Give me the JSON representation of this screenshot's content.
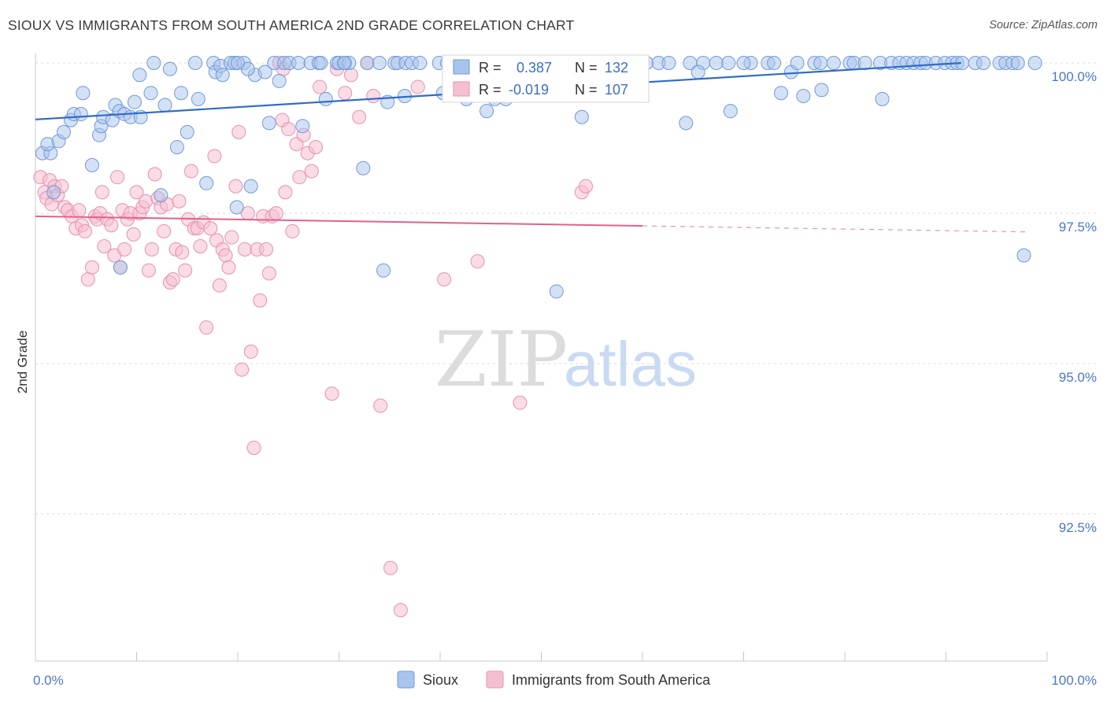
{
  "header": {
    "title": "SIOUX VS IMMIGRANTS FROM SOUTH AMERICA 2ND GRADE CORRELATION CHART",
    "source": "Source: ZipAtlas.com"
  },
  "watermark": {
    "zip": "ZIP",
    "atlas": "atlas"
  },
  "legend_box": {
    "r_label": "R =",
    "n_label": "N =",
    "sioux": {
      "r": "0.387",
      "n": "132"
    },
    "immigrants": {
      "r": "-0.019",
      "n": "107"
    }
  },
  "bottom_legend": {
    "sioux": "Sioux",
    "immigrants": "Immigrants from South America"
  },
  "colors": {
    "sioux_fill": "#a9c4ec",
    "sioux_stroke": "#6f9ad8",
    "sioux_line": "#2f6cc7",
    "imm_fill": "#f6bfd1",
    "imm_stroke": "#e890ad",
    "imm_line": "#e0618c",
    "tick_label": "#4a78c4",
    "grid": "#d9d9d9"
  },
  "chart_data": {
    "type": "scatter",
    "ylabel": "2nd Grade",
    "xlim": [
      0,
      100
    ],
    "ylim": [
      90.5,
      100.5
    ],
    "y_ticks": [
      100.0,
      97.5,
      95.0,
      92.5
    ],
    "y_tick_labels": [
      "100.0%",
      "97.5%",
      "95.0%",
      "92.5%"
    ],
    "x_tick_labels": [
      "0.0%",
      "100.0%"
    ],
    "grid": "horizontal dashed",
    "series": [
      {
        "name": "Sioux",
        "r": 0.387,
        "n": 132,
        "trend": {
          "x0": 0,
          "y0": 99.06,
          "x1": 91.5,
          "y1": 100.0
        },
        "points": [
          [
            0.7,
            98.5
          ],
          [
            1.5,
            98.5
          ],
          [
            1.2,
            98.65
          ],
          [
            2.3,
            98.7
          ],
          [
            2.8,
            98.85
          ],
          [
            3.5,
            99.05
          ],
          [
            3.8,
            99.15
          ],
          [
            4.5,
            99.15
          ],
          [
            6.3,
            98.8
          ],
          [
            6.5,
            98.95
          ],
          [
            4.7,
            99.5
          ],
          [
            5.6,
            98.3
          ],
          [
            6.7,
            99.1
          ],
          [
            7.6,
            99.05
          ],
          [
            7.9,
            99.3
          ],
          [
            8.3,
            99.2
          ],
          [
            8.8,
            99.15
          ],
          [
            9.4,
            99.1
          ],
          [
            9.8,
            99.35
          ],
          [
            10.4,
            99.1
          ],
          [
            10.3,
            99.8
          ],
          [
            11.4,
            99.5
          ],
          [
            11.7,
            100.0
          ],
          [
            12.8,
            99.3
          ],
          [
            13.3,
            99.9
          ],
          [
            14.0,
            98.6
          ],
          [
            14.4,
            99.5
          ],
          [
            15.0,
            98.85
          ],
          [
            15.8,
            100.0
          ],
          [
            16.1,
            99.4
          ],
          [
            16.9,
            98.0
          ],
          [
            17.6,
            100.0
          ],
          [
            17.8,
            99.85
          ],
          [
            18.3,
            99.95
          ],
          [
            18.5,
            99.8
          ],
          [
            19.3,
            100.0
          ],
          [
            19.7,
            100.0
          ],
          [
            19.9,
            97.6
          ],
          [
            20.6,
            100.0
          ],
          [
            21.3,
            97.95
          ],
          [
            21.7,
            99.8
          ],
          [
            21.0,
            99.9
          ],
          [
            22.7,
            99.85
          ],
          [
            23.1,
            99.0
          ],
          [
            23.6,
            100.0
          ],
          [
            24.1,
            99.7
          ],
          [
            24.6,
            100.0
          ],
          [
            25.1,
            100.0
          ],
          [
            26.0,
            100.0
          ],
          [
            26.4,
            98.95
          ],
          [
            27.2,
            100.0
          ],
          [
            28.0,
            100.0
          ],
          [
            28.2,
            100.0
          ],
          [
            28.7,
            99.4
          ],
          [
            29.8,
            100.0
          ],
          [
            30.0,
            100.0
          ],
          [
            30.6,
            100.0
          ],
          [
            31.0,
            100.0
          ],
          [
            32.4,
            98.25
          ],
          [
            32.8,
            100.0
          ],
          [
            34.4,
            96.55
          ],
          [
            34.8,
            99.35
          ],
          [
            35.5,
            100.0
          ],
          [
            35.8,
            100.0
          ],
          [
            36.6,
            100.0
          ],
          [
            37.2,
            100.0
          ],
          [
            38.0,
            100.0
          ],
          [
            39.9,
            100.0
          ],
          [
            40.7,
            100.0
          ],
          [
            41.5,
            100.0
          ],
          [
            42.1,
            100.0
          ],
          [
            42.6,
            99.4
          ],
          [
            43.9,
            100.0
          ],
          [
            44.6,
            99.2
          ],
          [
            44.9,
            100.0
          ],
          [
            45.4,
            99.4
          ],
          [
            46.5,
            99.4
          ],
          [
            47.7,
            100.0
          ],
          [
            49.1,
            100.0
          ],
          [
            50.7,
            100.0
          ],
          [
            52.3,
            100.0
          ],
          [
            54.0,
            99.1
          ],
          [
            56.5,
            100.0
          ],
          [
            59.0,
            100.0
          ],
          [
            60.4,
            100.0
          ],
          [
            61.6,
            100.0
          ],
          [
            62.6,
            100.0
          ],
          [
            64.3,
            99.0
          ],
          [
            64.7,
            100.0
          ],
          [
            66.0,
            100.0
          ],
          [
            67.3,
            100.0
          ],
          [
            68.5,
            100.0
          ],
          [
            70.7,
            100.0
          ],
          [
            72.4,
            100.0
          ],
          [
            73.0,
            100.0
          ],
          [
            74.7,
            99.85
          ],
          [
            75.3,
            100.0
          ],
          [
            77.0,
            100.0
          ],
          [
            77.6,
            100.0
          ],
          [
            78.9,
            100.0
          ],
          [
            80.5,
            100.0
          ],
          [
            80.9,
            100.0
          ],
          [
            82.0,
            100.0
          ],
          [
            83.5,
            100.0
          ],
          [
            84.6,
            100.0
          ],
          [
            85.4,
            100.0
          ],
          [
            86.1,
            100.0
          ],
          [
            86.8,
            100.0
          ],
          [
            87.5,
            100.0
          ],
          [
            88.0,
            100.0
          ],
          [
            89.0,
            100.0
          ],
          [
            89.9,
            100.0
          ],
          [
            90.6,
            100.0
          ],
          [
            91.1,
            100.0
          ],
          [
            91.6,
            100.0
          ],
          [
            92.9,
            100.0
          ],
          [
            93.7,
            100.0
          ],
          [
            95.3,
            100.0
          ],
          [
            95.9,
            100.0
          ],
          [
            96.6,
            100.0
          ],
          [
            97.1,
            100.0
          ],
          [
            98.8,
            100.0
          ],
          [
            68.7,
            99.2
          ],
          [
            73.7,
            99.5
          ],
          [
            75.9,
            99.45
          ],
          [
            77.7,
            99.55
          ],
          [
            83.7,
            99.4
          ],
          [
            65.5,
            99.85
          ],
          [
            70.0,
            100.0
          ],
          [
            36.5,
            99.45
          ],
          [
            40.3,
            99.5
          ],
          [
            34.0,
            100.0
          ],
          [
            20.0,
            100.0
          ],
          [
            30.5,
            100.0
          ],
          [
            45.5,
            100.0
          ],
          [
            12.4,
            97.8
          ],
          [
            8.4,
            96.6
          ],
          [
            1.8,
            97.85
          ],
          [
            51.5,
            96.2
          ],
          [
            97.7,
            96.8
          ],
          [
            55.0,
            100.0
          ],
          [
            57.5,
            100.0
          ],
          [
            42.9,
            99.5
          ]
        ]
      },
      {
        "name": "Immigrants from South America",
        "r": -0.019,
        "n": 107,
        "trend": {
          "x0": 0,
          "y0": 97.45,
          "x1": 60.0,
          "y1": 97.29,
          "dash_x1": 98.0,
          "dash_y1": 97.19
        },
        "points": [
          [
            0.5,
            98.1
          ],
          [
            0.9,
            97.85
          ],
          [
            1.1,
            97.75
          ],
          [
            1.4,
            98.05
          ],
          [
            1.6,
            97.65
          ],
          [
            1.9,
            97.95
          ],
          [
            2.2,
            97.8
          ],
          [
            2.6,
            97.95
          ],
          [
            2.9,
            97.6
          ],
          [
            3.2,
            97.55
          ],
          [
            3.6,
            97.45
          ],
          [
            4.0,
            97.25
          ],
          [
            4.3,
            97.55
          ],
          [
            4.6,
            97.3
          ],
          [
            4.9,
            97.2
          ],
          [
            5.2,
            96.4
          ],
          [
            5.6,
            96.6
          ],
          [
            5.9,
            97.45
          ],
          [
            6.1,
            97.4
          ],
          [
            6.4,
            97.5
          ],
          [
            6.6,
            97.85
          ],
          [
            6.8,
            96.95
          ],
          [
            7.1,
            97.4
          ],
          [
            7.5,
            97.3
          ],
          [
            7.8,
            96.8
          ],
          [
            8.1,
            98.1
          ],
          [
            8.4,
            96.6
          ],
          [
            8.6,
            97.55
          ],
          [
            8.8,
            96.9
          ],
          [
            9.1,
            97.4
          ],
          [
            9.4,
            97.5
          ],
          [
            9.7,
            97.15
          ],
          [
            10.0,
            97.85
          ],
          [
            10.3,
            97.5
          ],
          [
            10.6,
            97.6
          ],
          [
            10.9,
            97.7
          ],
          [
            11.2,
            96.55
          ],
          [
            11.5,
            96.9
          ],
          [
            11.8,
            98.15
          ],
          [
            12.1,
            97.75
          ],
          [
            12.4,
            97.6
          ],
          [
            12.7,
            97.2
          ],
          [
            13.0,
            97.65
          ],
          [
            13.3,
            96.35
          ],
          [
            13.6,
            96.4
          ],
          [
            13.9,
            96.9
          ],
          [
            14.2,
            97.7
          ],
          [
            14.5,
            96.85
          ],
          [
            14.8,
            96.55
          ],
          [
            15.1,
            97.4
          ],
          [
            15.4,
            98.2
          ],
          [
            15.7,
            97.25
          ],
          [
            16.0,
            97.25
          ],
          [
            16.3,
            96.95
          ],
          [
            16.6,
            97.35
          ],
          [
            16.9,
            95.6
          ],
          [
            17.3,
            97.25
          ],
          [
            17.7,
            98.45
          ],
          [
            17.9,
            97.05
          ],
          [
            18.2,
            96.3
          ],
          [
            18.5,
            96.9
          ],
          [
            18.8,
            96.8
          ],
          [
            19.1,
            96.6
          ],
          [
            19.4,
            97.1
          ],
          [
            19.8,
            97.95
          ],
          [
            20.1,
            98.85
          ],
          [
            20.4,
            94.9
          ],
          [
            20.7,
            96.9
          ],
          [
            21.0,
            97.5
          ],
          [
            21.3,
            95.2
          ],
          [
            21.6,
            93.6
          ],
          [
            21.9,
            96.9
          ],
          [
            22.2,
            96.05
          ],
          [
            22.5,
            97.45
          ],
          [
            22.8,
            96.9
          ],
          [
            23.1,
            96.5
          ],
          [
            23.4,
            97.45
          ],
          [
            23.8,
            97.5
          ],
          [
            24.1,
            100.0
          ],
          [
            24.4,
            99.05
          ],
          [
            24.7,
            97.85
          ],
          [
            25.0,
            98.9
          ],
          [
            25.4,
            97.2
          ],
          [
            25.8,
            98.65
          ],
          [
            26.1,
            98.1
          ],
          [
            26.5,
            98.8
          ],
          [
            26.9,
            98.5
          ],
          [
            27.3,
            98.2
          ],
          [
            27.7,
            98.6
          ],
          [
            28.1,
            99.6
          ],
          [
            29.3,
            94.5
          ],
          [
            29.8,
            99.9
          ],
          [
            30.6,
            99.5
          ],
          [
            31.2,
            99.8
          ],
          [
            32.0,
            99.1
          ],
          [
            32.8,
            100.0
          ],
          [
            33.4,
            99.45
          ],
          [
            34.1,
            94.3
          ],
          [
            35.1,
            91.6
          ],
          [
            36.1,
            90.9
          ],
          [
            37.8,
            99.6
          ],
          [
            40.4,
            96.4
          ],
          [
            43.7,
            96.7
          ],
          [
            47.9,
            94.35
          ],
          [
            54.0,
            97.85
          ],
          [
            54.4,
            97.95
          ],
          [
            24.5,
            99.9
          ]
        ]
      }
    ]
  }
}
